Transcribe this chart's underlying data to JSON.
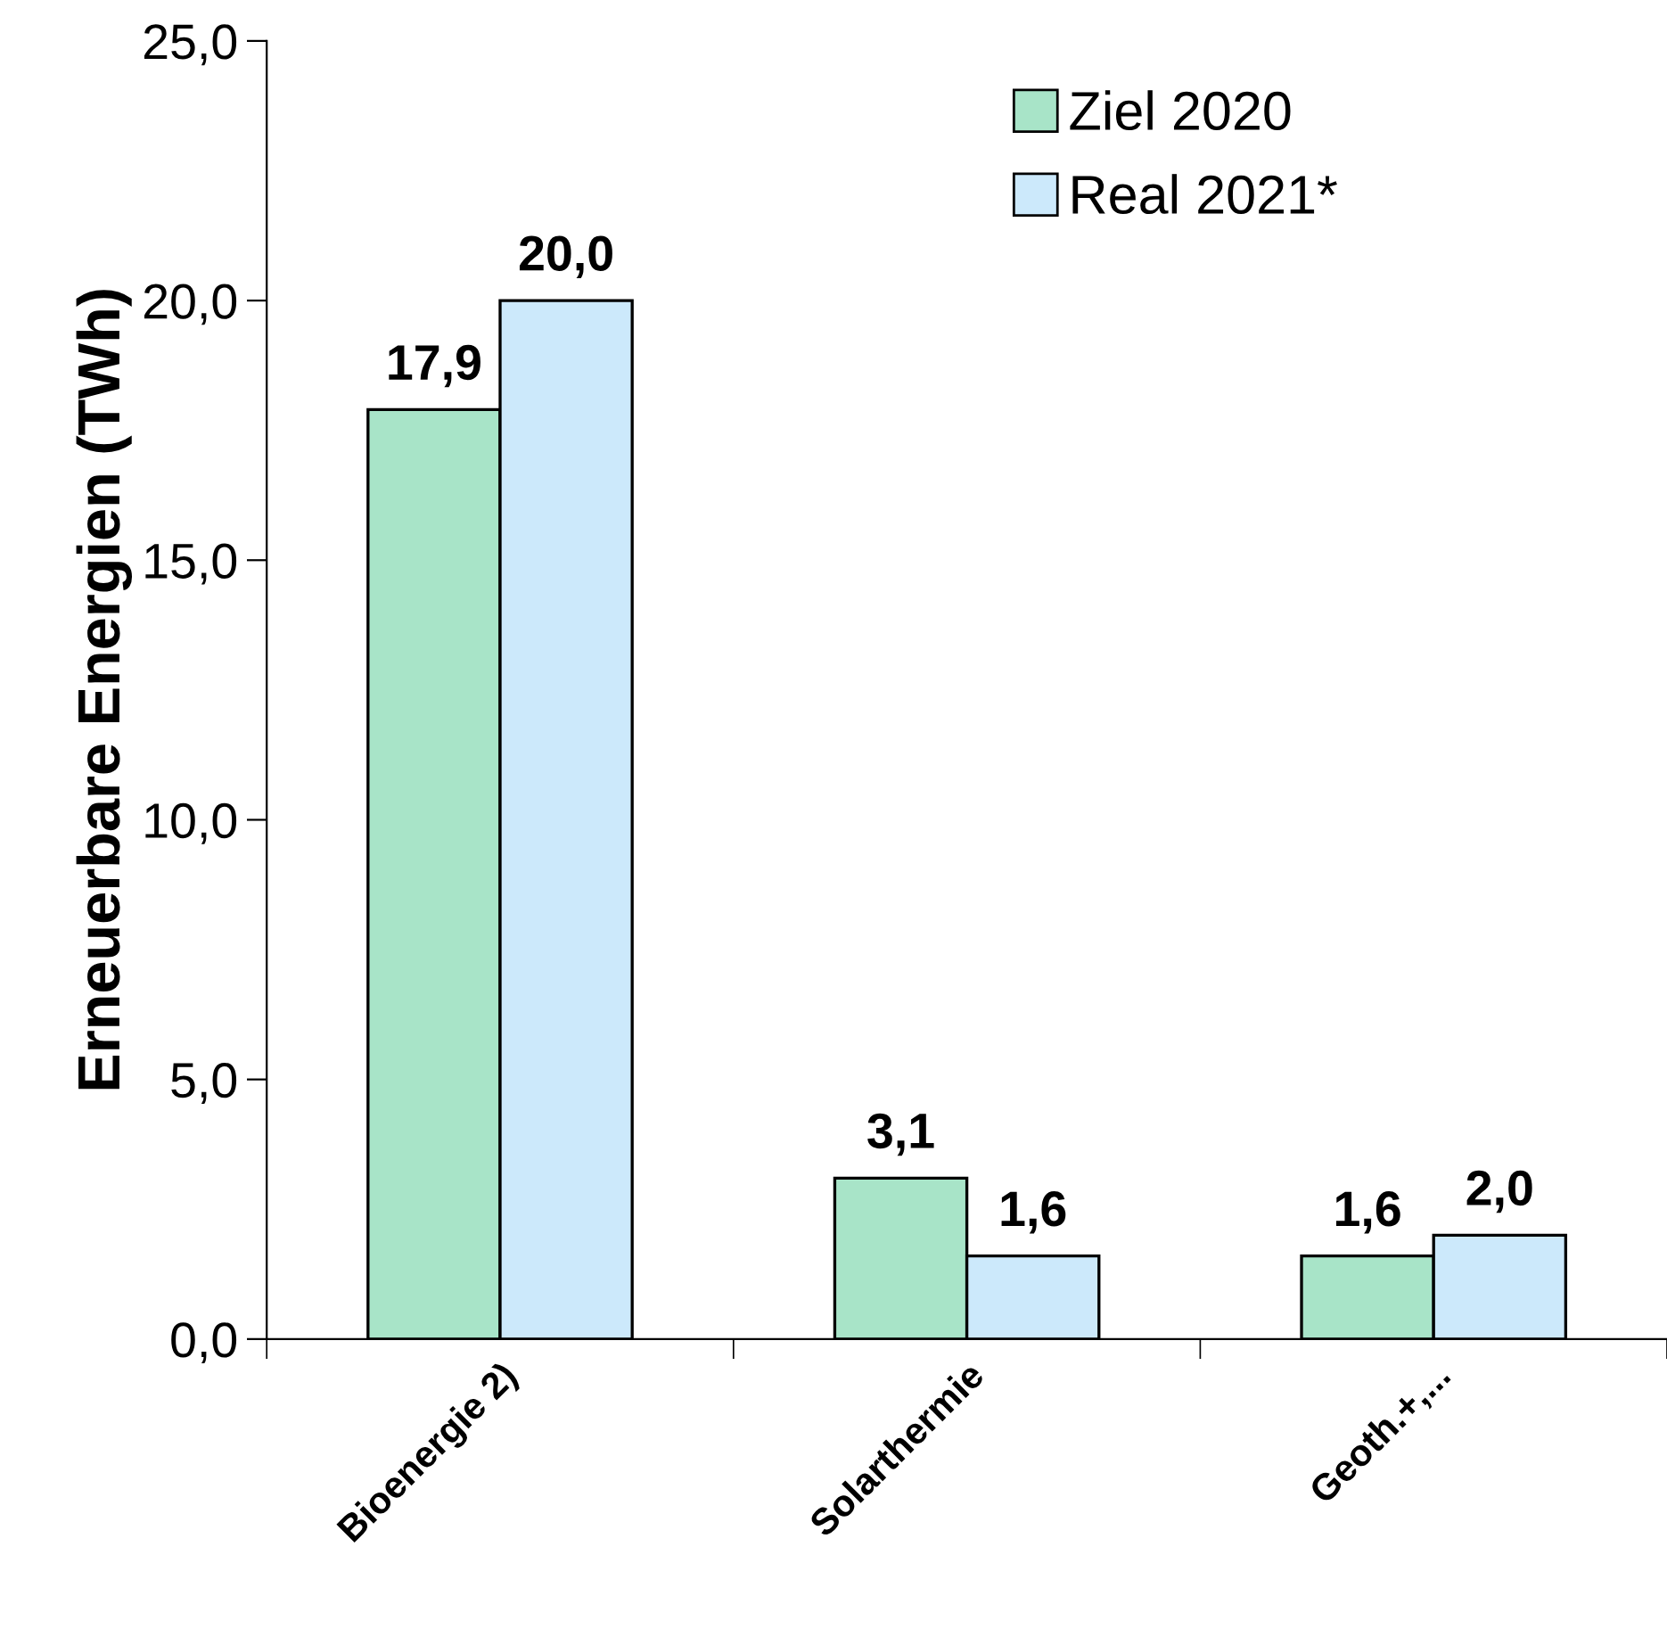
{
  "chart_data": {
    "type": "bar",
    "ylabel": "Erneuerbare Energien (TWh)",
    "categories": [
      "Bioenergie 2)",
      "Solarthermie",
      "Geoth.+,..."
    ],
    "series": [
      {
        "name": "Ziel 2020",
        "color": "#a8e4c8",
        "values": [
          17.9,
          3.1,
          1.6
        ],
        "value_labels": [
          "17,9",
          "3,1",
          "1,6"
        ]
      },
      {
        "name": "Real 2021*",
        "color": "#cce9fb",
        "values": [
          20.0,
          1.6,
          2.0
        ],
        "value_labels": [
          "20,0",
          "1,6",
          "2,0"
        ]
      }
    ],
    "ylim": [
      0,
      25
    ],
    "yticks": [
      {
        "value": 0,
        "label": "0,0"
      },
      {
        "value": 5,
        "label": "5,0"
      },
      {
        "value": 10,
        "label": "10,0"
      },
      {
        "value": 15,
        "label": "15,0"
      },
      {
        "value": 20,
        "label": "20,0"
      },
      {
        "value": 25,
        "label": "25,0"
      }
    ],
    "grid": false,
    "legend": "top right"
  }
}
